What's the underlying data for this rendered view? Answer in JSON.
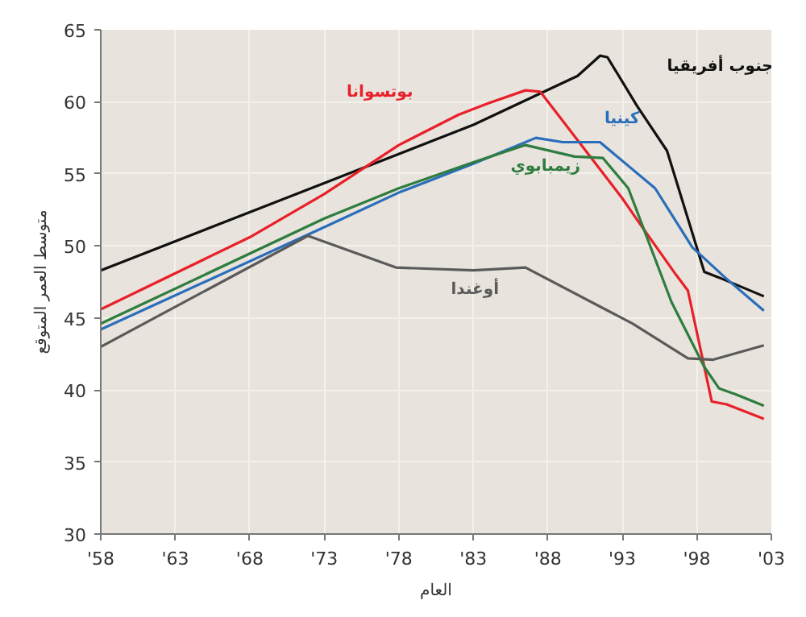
{
  "chart_data": {
    "type": "line",
    "xlabel": "العام",
    "ylabel": "متوسط العمر المتوقع",
    "xlim": [
      1958,
      2003
    ],
    "ylim": [
      30,
      65
    ],
    "xticks": [
      {
        "value": 1958,
        "label": "'58"
      },
      {
        "value": 1963,
        "label": "'63"
      },
      {
        "value": 1968,
        "label": "'68"
      },
      {
        "value": 1973,
        "label": "'73"
      },
      {
        "value": 1978,
        "label": "'78"
      },
      {
        "value": 1983,
        "label": "'83"
      },
      {
        "value": 1988,
        "label": "'88"
      },
      {
        "value": 1993,
        "label": "'93"
      },
      {
        "value": 1998,
        "label": "'98"
      },
      {
        "value": 2003,
        "label": "'03"
      }
    ],
    "yticks": [
      30,
      35,
      40,
      45,
      50,
      55,
      60,
      65
    ],
    "grid": true,
    "marker": "none",
    "line_style": "solid",
    "series": [
      {
        "name": "جنوب أفريقيا",
        "color": "#111111",
        "x": [
          1958,
          1983,
          1990,
          1991.5,
          1992,
          1994,
          1996,
          1998.5,
          1999.5,
          2002.5
        ],
        "values": [
          48.3,
          58.4,
          61.8,
          63.2,
          63.1,
          59.7,
          56.6,
          48.2,
          47.8,
          46.5
        ]
      },
      {
        "name": "بوتسوانا",
        "color": "#e8202a",
        "x": [
          1958,
          1968,
          1973,
          1978,
          1982,
          1984,
          1986.5,
          1987.5,
          1993,
          1994,
          1996.6,
          1997.4,
          1999,
          2000,
          2002.5
        ],
        "values": [
          45.6,
          50.6,
          53.6,
          57.0,
          59.1,
          59.9,
          60.8,
          60.7,
          53.3,
          51.8,
          48.0,
          46.9,
          39.2,
          39.0,
          38.0
        ]
      },
      {
        "name": "كينيا",
        "color": "#2a6ebb",
        "x": [
          1958,
          1973,
          1978,
          1983,
          1987.2,
          1989,
          1991.5,
          1995.2,
          1997.7,
          1999.9,
          2002.5
        ],
        "values": [
          44.2,
          51.3,
          53.7,
          55.7,
          57.5,
          57.2,
          57.2,
          54.0,
          49.9,
          47.8,
          45.5
        ]
      },
      {
        "name": "زيمبابوي",
        "color": "#2e7d3e",
        "x": [
          1958,
          1973,
          1978,
          1983,
          1986.5,
          1989.8,
          1991.7,
          1993.4,
          1996.3,
          1998.5,
          1999.5,
          2000.6,
          2002.5
        ],
        "values": [
          44.6,
          51.9,
          54.0,
          55.8,
          57.0,
          56.2,
          56.1,
          54.0,
          46.1,
          41.6,
          40.1,
          39.7,
          38.9
        ]
      },
      {
        "name": "أوغندا",
        "color": "#5a5a5a",
        "x": [
          1958,
          1971.9,
          1977.8,
          1983,
          1986.5,
          1993.7,
          1997.4,
          1999.1,
          2002.5
        ],
        "values": [
          43.0,
          50.7,
          48.5,
          48.3,
          48.5,
          44.6,
          42.2,
          42.1,
          43.1
        ]
      }
    ]
  }
}
